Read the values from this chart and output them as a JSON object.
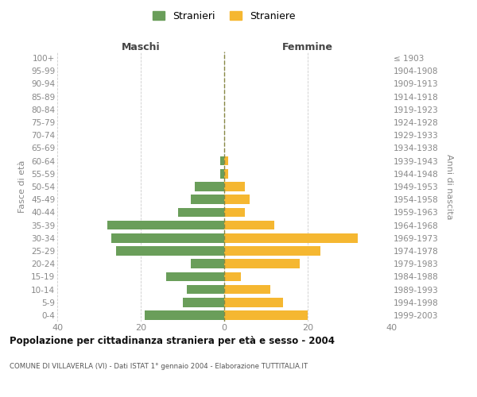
{
  "age_groups": [
    "100+",
    "95-99",
    "90-94",
    "85-89",
    "80-84",
    "75-79",
    "70-74",
    "65-69",
    "60-64",
    "55-59",
    "50-54",
    "45-49",
    "40-44",
    "35-39",
    "30-34",
    "25-29",
    "20-24",
    "15-19",
    "10-14",
    "5-9",
    "0-4"
  ],
  "birth_years": [
    "≤ 1903",
    "1904-1908",
    "1909-1913",
    "1914-1918",
    "1919-1923",
    "1924-1928",
    "1929-1933",
    "1934-1938",
    "1939-1943",
    "1944-1948",
    "1949-1953",
    "1954-1958",
    "1959-1963",
    "1964-1968",
    "1969-1973",
    "1974-1978",
    "1979-1983",
    "1984-1988",
    "1989-1993",
    "1994-1998",
    "1999-2003"
  ],
  "maschi": [
    0,
    0,
    0,
    0,
    0,
    0,
    0,
    0,
    1,
    1,
    7,
    8,
    11,
    28,
    27,
    26,
    8,
    14,
    9,
    10,
    19
  ],
  "femmine": [
    0,
    0,
    0,
    0,
    0,
    0,
    0,
    0,
    1,
    1,
    5,
    6,
    5,
    12,
    32,
    23,
    18,
    4,
    11,
    14,
    20
  ],
  "maschi_color": "#6a9e5a",
  "femmine_color": "#f5b731",
  "background_color": "#ffffff",
  "grid_color": "#cccccc",
  "title": "Popolazione per cittadinanza straniera per età e sesso - 2004",
  "subtitle": "COMUNE DI VILLAVERLA (VI) - Dati ISTAT 1° gennaio 2004 - Elaborazione TUTTITALIA.IT",
  "legend_maschi": "Stranieri",
  "legend_femmine": "Straniere",
  "label_maschi": "Maschi",
  "label_femmine": "Femmine",
  "ylabel_left": "Fasce di età",
  "ylabel_right": "Anni di nascita",
  "xlim": 40,
  "dashed_line_color": "#888844"
}
